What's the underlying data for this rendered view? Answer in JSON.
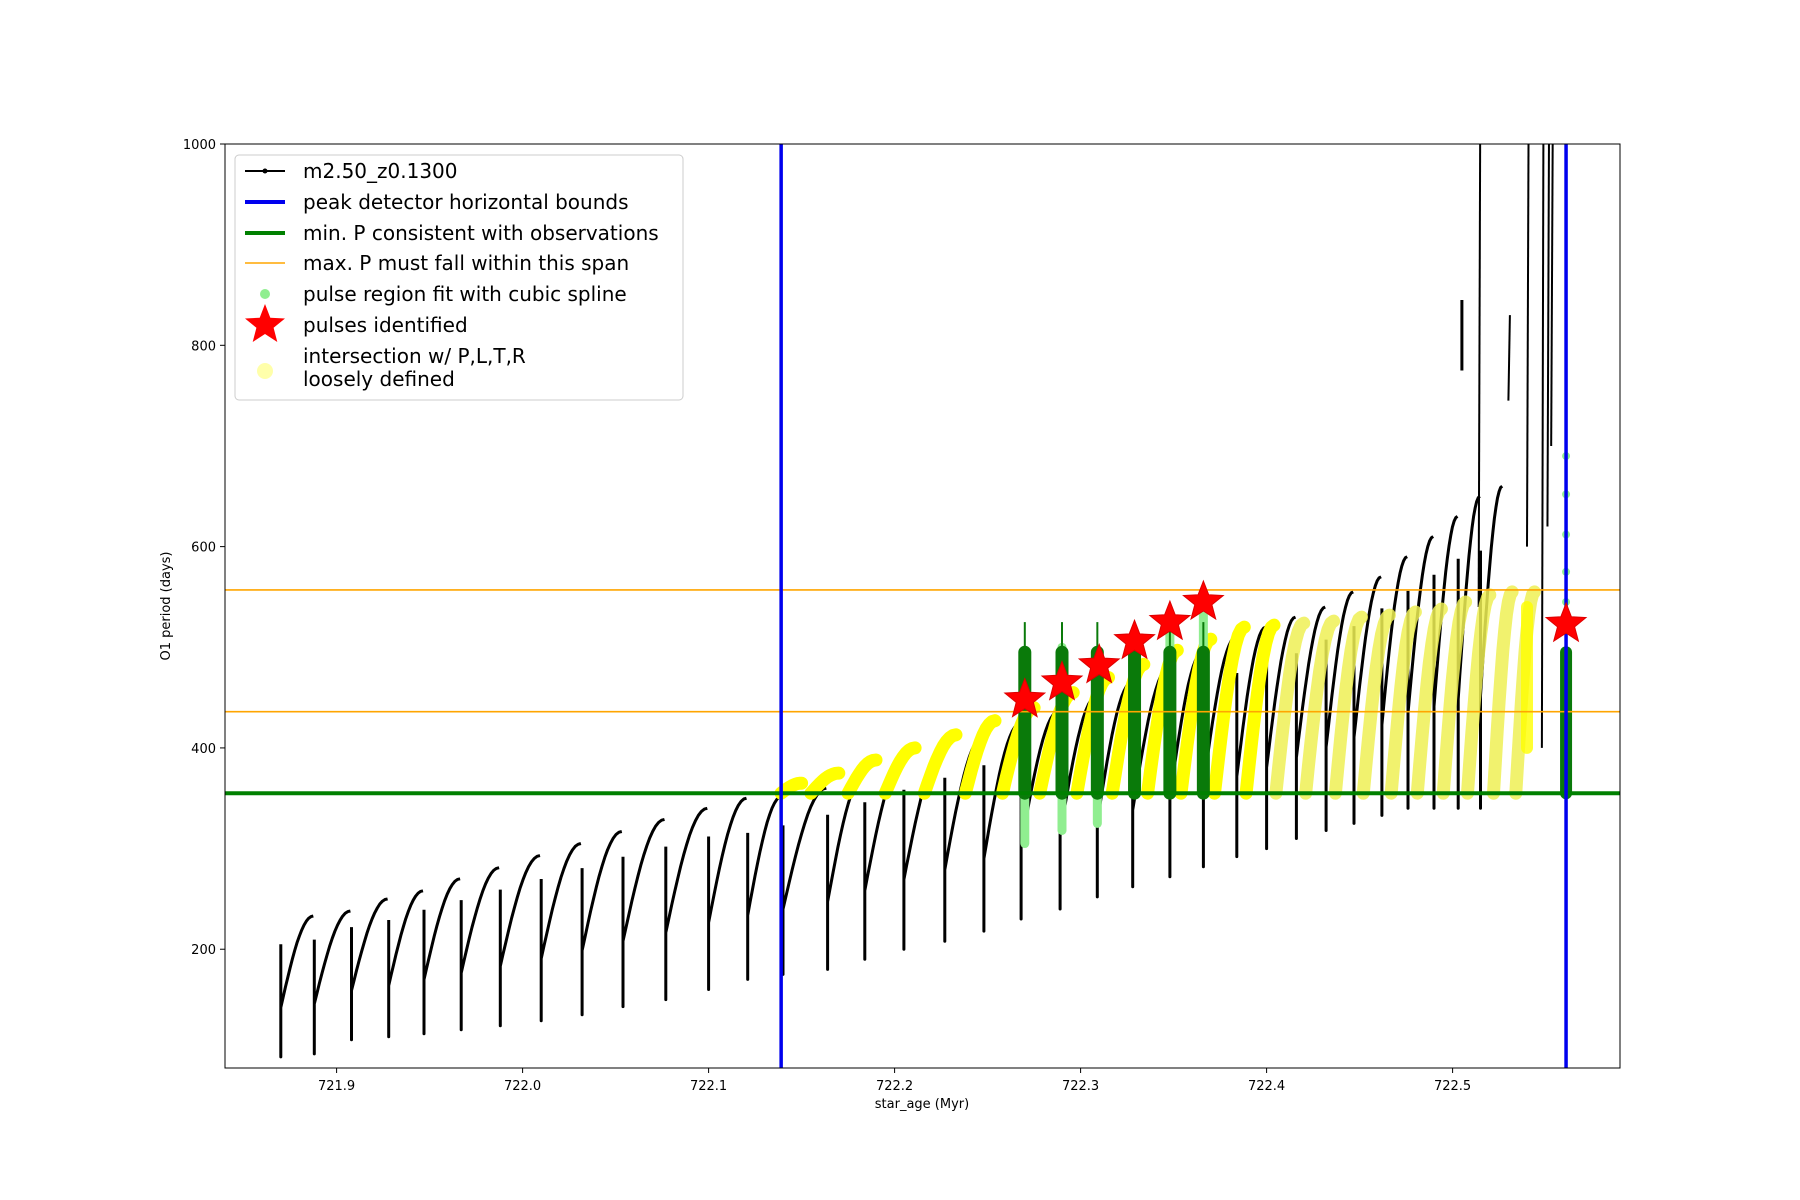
{
  "chart_data": {
    "type": "line",
    "title": "",
    "xlabel": "star_age (Myr)",
    "ylabel": "O1 period (days)",
    "xlim": [
      721.84,
      722.59
    ],
    "ylim": [
      82,
      1000
    ],
    "xticks": [
      721.9,
      722.0,
      722.1,
      722.2,
      722.3,
      722.4,
      722.5
    ],
    "xtick_labels": [
      "721.9",
      "722.0",
      "722.1",
      "722.2",
      "722.3",
      "722.4",
      "722.5"
    ],
    "yticks": [
      200,
      400,
      600,
      800,
      1000
    ],
    "ytick_labels": [
      "200",
      "400",
      "600",
      "800",
      "1000"
    ],
    "grid": false,
    "legend_position": "upper-left",
    "model_series": {
      "name": "m2.50_z0.1300",
      "color": "#000000",
      "cycle_starts": [
        721.87,
        721.888,
        721.908,
        721.928,
        721.947,
        721.967,
        721.988,
        722.01,
        722.032,
        722.054,
        722.077,
        722.1,
        722.121,
        722.14,
        722.164,
        722.184,
        722.205,
        722.227,
        722.248,
        722.268,
        722.289,
        722.309,
        722.328,
        722.348,
        722.366,
        722.384,
        722.4,
        722.416,
        722.432,
        722.447,
        722.462,
        722.476,
        722.49,
        722.503,
        722.515
      ],
      "cycle_peaks": [
        233,
        238,
        250,
        258,
        270,
        281,
        293,
        305,
        317,
        329,
        340,
        350,
        352,
        360,
        372,
        385,
        398,
        411,
        424,
        437,
        451,
        465,
        480,
        495,
        510,
        520,
        530,
        540,
        555,
        570,
        590,
        610,
        630,
        650,
        660
      ],
      "cycle_minima": [
        93,
        96,
        110,
        113,
        116,
        120,
        124,
        129,
        135,
        143,
        150,
        160,
        170,
        175,
        180,
        190,
        200,
        208,
        218,
        230,
        240,
        252,
        262,
        272,
        282,
        292,
        300,
        310,
        318,
        325,
        333,
        340,
        340,
        340,
        340
      ],
      "late_spikes": [
        {
          "x": 722.514,
          "y_low": 540,
          "y_high": 1000
        },
        {
          "x": 722.53,
          "y_low": 745,
          "y_high": 830
        },
        {
          "x": 722.54,
          "y_low": 600,
          "y_high": 1000
        },
        {
          "x": 722.548,
          "y_low": 400,
          "y_high": 1000
        },
        {
          "x": 722.551,
          "y_low": 620,
          "y_high": 1000
        },
        {
          "x": 722.553,
          "y_low": 700,
          "y_high": 1000
        }
      ],
      "late_segment": {
        "x": 722.505,
        "y_low": 775,
        "y_high": 845
      }
    },
    "peak_detector_bounds": {
      "name": "peak detector horizontal bounds",
      "color": "#0000ee",
      "x": [
        722.139,
        722.561
      ]
    },
    "min_period_line": {
      "name": "min. P consistent with observations",
      "color": "#008000",
      "y": 355
    },
    "max_period_span": {
      "name": "max. P must fall within this span",
      "color": "#ffa500",
      "y": [
        436,
        557
      ]
    },
    "spline_fit": {
      "name": "pulse region fit with cubic spline",
      "color": "#90ee90",
      "pulses": [
        {
          "x": 722.27,
          "y_low": 305,
          "y_high": 490
        },
        {
          "x": 722.29,
          "y_low": 318,
          "y_high": 500
        },
        {
          "x": 722.309,
          "y_low": 325,
          "y_high": 495
        },
        {
          "x": 722.329,
          "y_low": 355,
          "y_high": 510
        },
        {
          "x": 722.348,
          "y_low": 355,
          "y_high": 520
        },
        {
          "x": 722.366,
          "y_low": 355,
          "y_high": 535
        }
      ],
      "scatter_points": [
        {
          "x": 722.561,
          "y": 690
        },
        {
          "x": 722.561,
          "y": 652
        },
        {
          "x": 722.561,
          "y": 612
        },
        {
          "x": 722.561,
          "y": 575
        },
        {
          "x": 722.561,
          "y": 545
        }
      ]
    },
    "pulses_identified": {
      "name": "pulses identified",
      "color": "#ff0000",
      "points": [
        {
          "x": 722.27,
          "y": 448
        },
        {
          "x": 722.29,
          "y": 465
        },
        {
          "x": 722.31,
          "y": 482
        },
        {
          "x": 722.329,
          "y": 506
        },
        {
          "x": 722.348,
          "y": 525
        },
        {
          "x": 722.366,
          "y": 545
        },
        {
          "x": 722.561,
          "y": 523
        }
      ]
    },
    "intersection": {
      "name_line1": "intersection w/ P,L,T,R",
      "name_line2": "loosely defined",
      "color": "#ffff00",
      "light_color": "#ffffaa",
      "cycles": [
        {
          "x0": 722.139,
          "x1": 722.15,
          "peak": 365
        },
        {
          "x0": 722.155,
          "x1": 722.17,
          "peak": 375
        },
        {
          "x0": 722.175,
          "x1": 722.19,
          "peak": 388
        },
        {
          "x0": 722.195,
          "x1": 722.211,
          "peak": 400
        },
        {
          "x0": 722.216,
          "x1": 722.233,
          "peak": 413
        },
        {
          "x0": 722.238,
          "x1": 722.254,
          "peak": 427
        },
        {
          "x0": 722.258,
          "x1": 722.275,
          "peak": 440
        },
        {
          "x0": 722.278,
          "x1": 722.296,
          "peak": 455
        },
        {
          "x0": 722.298,
          "x1": 722.315,
          "peak": 470
        },
        {
          "x0": 722.317,
          "x1": 722.334,
          "peak": 483
        },
        {
          "x0": 722.336,
          "x1": 722.352,
          "peak": 497
        },
        {
          "x0": 722.354,
          "x1": 722.37,
          "peak": 508
        },
        {
          "x0": 722.372,
          "x1": 722.388,
          "peak": 520
        },
        {
          "x0": 722.389,
          "x1": 722.404,
          "peak": 522
        },
        {
          "x0": 722.405,
          "x1": 722.42,
          "peak": 524
        },
        {
          "x0": 722.421,
          "x1": 722.436,
          "peak": 526
        },
        {
          "x0": 722.437,
          "x1": 722.451,
          "peak": 530
        },
        {
          "x0": 722.452,
          "x1": 722.466,
          "peak": 532
        },
        {
          "x0": 722.467,
          "x1": 722.48,
          "peak": 535
        },
        {
          "x0": 722.481,
          "x1": 722.494,
          "peak": 538
        },
        {
          "x0": 722.495,
          "x1": 722.507,
          "peak": 545
        },
        {
          "x0": 722.508,
          "x1": 722.52,
          "peak": 552
        },
        {
          "x0": 722.522,
          "x1": 722.532,
          "peak": 555
        },
        {
          "x0": 722.534,
          "x1": 722.544,
          "peak": 555
        }
      ]
    },
    "legend": [
      {
        "key": "model",
        "label": "m2.50_z0.1300"
      },
      {
        "key": "bounds",
        "label": "peak detector horizontal bounds"
      },
      {
        "key": "minp",
        "label": "min. P consistent with observations"
      },
      {
        "key": "maxp",
        "label": "max. P must fall within this span"
      },
      {
        "key": "spline",
        "label": "pulse region fit with cubic spline"
      },
      {
        "key": "pulses",
        "label": "pulses identified"
      },
      {
        "key": "intersect1",
        "label": "intersection w/ P,L,T,R"
      },
      {
        "key": "intersect2",
        "label": "loosely defined"
      }
    ]
  }
}
